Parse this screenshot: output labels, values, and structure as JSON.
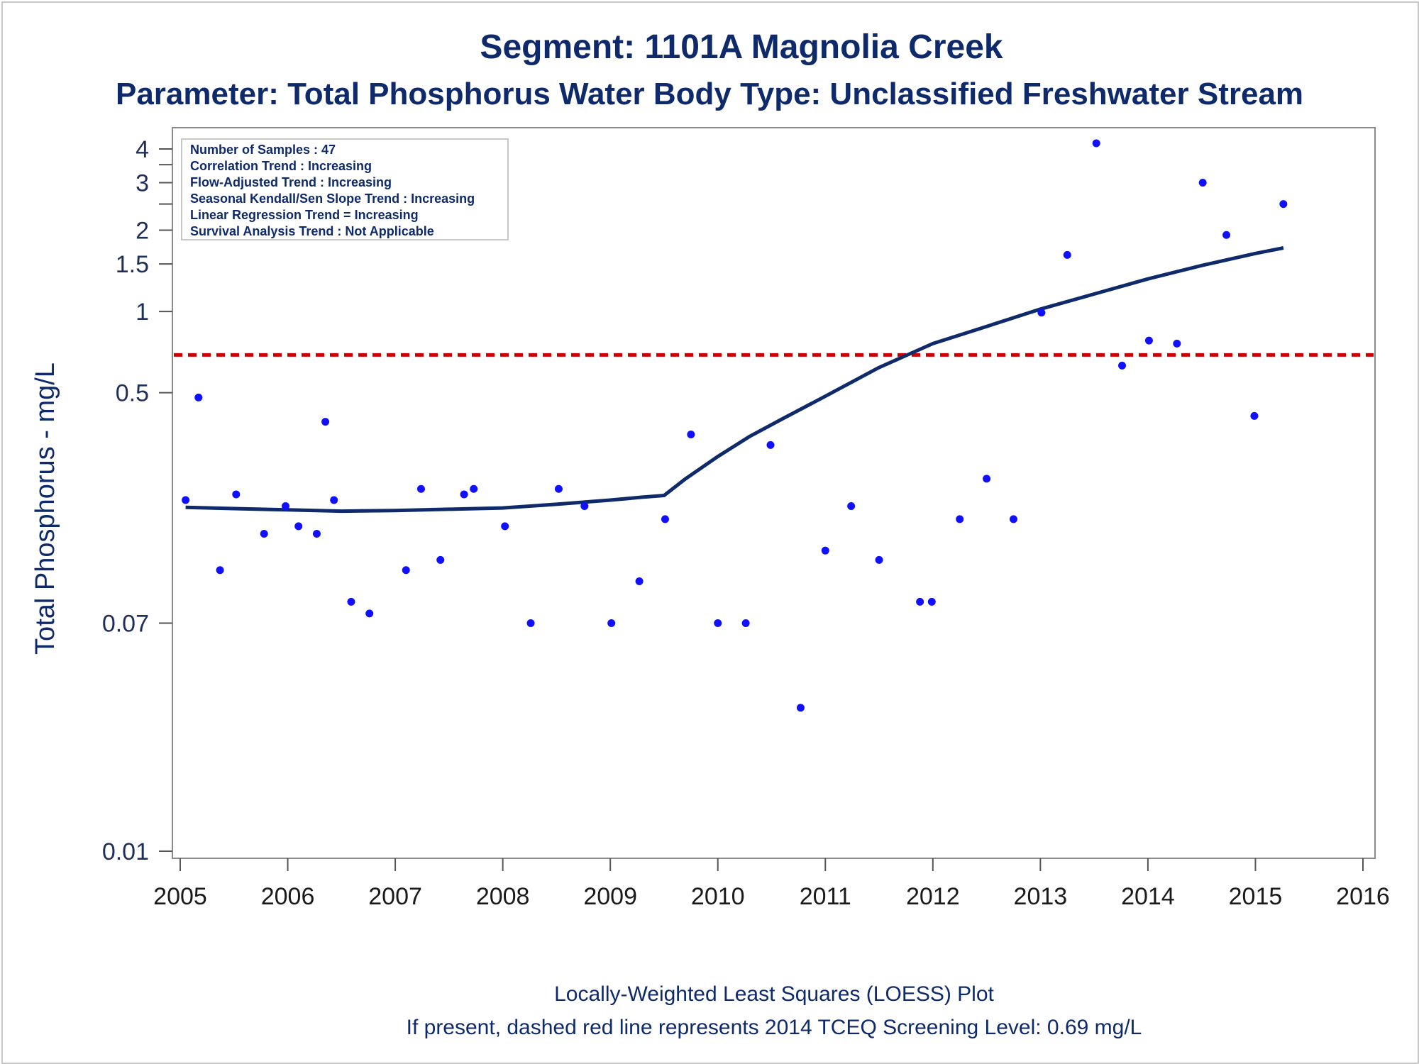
{
  "chart_data": {
    "type": "scatter",
    "title": "Segment: 1101A  Magnolia Creek",
    "subtitle": "Parameter: Total Phosphorus   Water Body Type: Unclassified Freshwater Stream",
    "xlabel": "",
    "ylabel": "Total Phosphorus - mg/L",
    "y_scale": "log",
    "xlim": [
      2005,
      2016
    ],
    "ylim": [
      0.01,
      4.4
    ],
    "x_ticks": [
      "2005",
      "2006",
      "2007",
      "2008",
      "2009",
      "2010",
      "2011",
      "2012",
      "2013",
      "2014",
      "2015",
      "2016"
    ],
    "y_ticks": [
      {
        "value": 0.01,
        "label": "0.01"
      },
      {
        "value": 0.07,
        "label": "0.07"
      },
      {
        "value": 0.5,
        "label": "0.5"
      },
      {
        "value": 1,
        "label": "1"
      },
      {
        "value": 1.5,
        "label": "1.5"
      },
      {
        "value": 2,
        "label": "2"
      },
      {
        "value": 3,
        "label": "3"
      },
      {
        "value": 4,
        "label": "4"
      }
    ],
    "y_minor_ticks": [
      2.5,
      3.5
    ],
    "grid": false,
    "legend_box": {
      "position": "top-left",
      "lines": [
        "Number of Samples : 47",
        "Correlation Trend : Increasing",
        "Flow-Adjusted Trend : Increasing",
        "Seasonal Kendall/Sen Slope Trend : Increasing",
        "Linear Regression Trend = Increasing",
        "Survival Analysis Trend : Not Applicable"
      ]
    },
    "series": [
      {
        "kind": "points",
        "color": "#1010ff",
        "points": [
          [
            2005.05,
            0.2
          ],
          [
            2005.17,
            0.48
          ],
          [
            2005.37,
            0.11
          ],
          [
            2005.52,
            0.21
          ],
          [
            2005.78,
            0.15
          ],
          [
            2005.98,
            0.19
          ],
          [
            2006.1,
            0.16
          ],
          [
            2006.27,
            0.15
          ],
          [
            2006.35,
            0.39
          ],
          [
            2006.43,
            0.2
          ],
          [
            2006.59,
            0.084
          ],
          [
            2006.76,
            0.076
          ],
          [
            2007.1,
            0.11
          ],
          [
            2007.24,
            0.22
          ],
          [
            2007.42,
            0.12
          ],
          [
            2007.64,
            0.21
          ],
          [
            2007.73,
            0.22
          ],
          [
            2008.02,
            0.16
          ],
          [
            2008.26,
            0.07
          ],
          [
            2008.52,
            0.22
          ],
          [
            2008.76,
            0.19
          ],
          [
            2009.01,
            0.07
          ],
          [
            2009.27,
            0.1
          ],
          [
            2009.51,
            0.17
          ],
          [
            2009.75,
            0.35
          ],
          [
            2010.0,
            0.07
          ],
          [
            2010.26,
            0.07
          ],
          [
            2010.49,
            0.32
          ],
          [
            2010.77,
            0.034
          ],
          [
            2011.0,
            0.13
          ],
          [
            2011.24,
            0.19
          ],
          [
            2011.5,
            0.12
          ],
          [
            2011.88,
            0.084
          ],
          [
            2011.99,
            0.084
          ],
          [
            2012.25,
            0.17
          ],
          [
            2012.5,
            0.24
          ],
          [
            2012.75,
            0.17
          ],
          [
            2013.01,
            0.99
          ],
          [
            2013.25,
            1.62
          ],
          [
            2013.52,
            4.2
          ],
          [
            2013.76,
            0.63
          ],
          [
            2014.01,
            0.78
          ],
          [
            2014.27,
            0.76
          ],
          [
            2014.51,
            3.0
          ],
          [
            2014.73,
            1.92
          ],
          [
            2014.99,
            0.41
          ],
          [
            2015.26,
            2.5
          ]
        ]
      },
      {
        "kind": "line",
        "name": "LOESS",
        "color": "#0f2a6b",
        "points": [
          [
            2005.05,
            0.188
          ],
          [
            2005.5,
            0.186
          ],
          [
            2006.0,
            0.184
          ],
          [
            2006.5,
            0.182
          ],
          [
            2007.0,
            0.183
          ],
          [
            2007.5,
            0.185
          ],
          [
            2008.0,
            0.187
          ],
          [
            2008.5,
            0.193
          ],
          [
            2009.0,
            0.2
          ],
          [
            2009.3,
            0.205
          ],
          [
            2009.5,
            0.208
          ],
          [
            2009.7,
            0.24
          ],
          [
            2010.0,
            0.29
          ],
          [
            2010.3,
            0.345
          ],
          [
            2010.6,
            0.4
          ],
          [
            2011.0,
            0.485
          ],
          [
            2011.5,
            0.62
          ],
          [
            2012.0,
            0.76
          ],
          [
            2012.5,
            0.88
          ],
          [
            2013.0,
            1.02
          ],
          [
            2013.5,
            1.16
          ],
          [
            2014.0,
            1.32
          ],
          [
            2014.5,
            1.48
          ],
          [
            2015.0,
            1.64
          ],
          [
            2015.26,
            1.72
          ]
        ]
      },
      {
        "kind": "hline",
        "name": "Screening Level",
        "color": "#cc0000",
        "dashed": true,
        "y": 0.69
      }
    ],
    "footnotes": [
      "Locally-Weighted Least Squares (LOESS) Plot",
      "If present, dashed red line represents 2014 TCEQ Screening Level: 0.69 mg/L"
    ]
  }
}
